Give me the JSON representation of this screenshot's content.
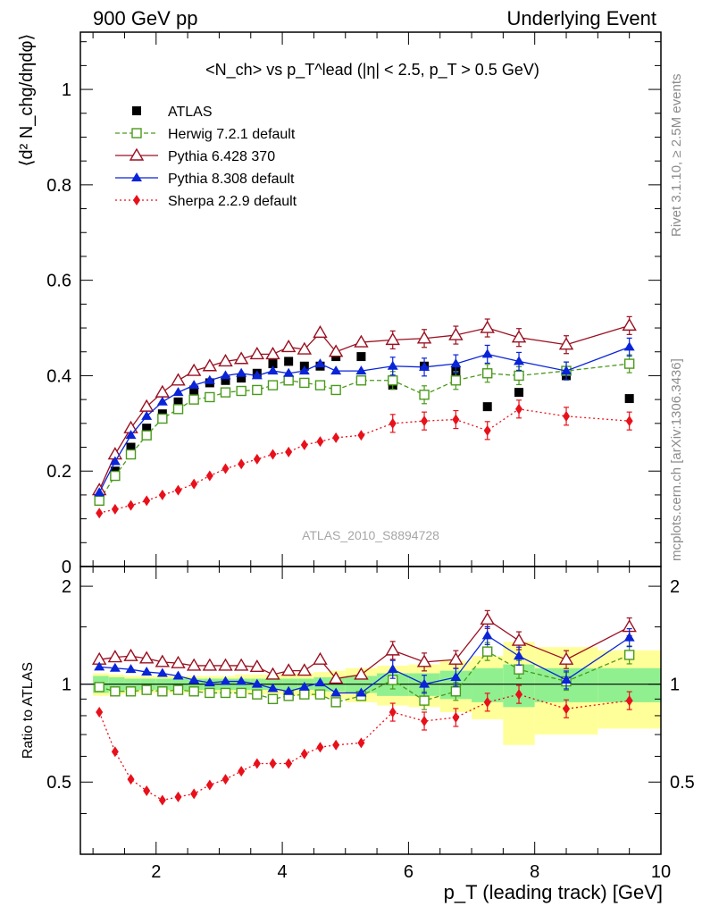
{
  "header": {
    "left": "900 GeV pp",
    "right": "Underlying Event"
  },
  "side_text": {
    "rivet": "Rivet 3.1.10, ≥ 2.5M events",
    "mcplots": "mcplots.cern.ch [arXiv:1306.3436]"
  },
  "colors": {
    "atlas": "#000000",
    "herwig": "#4a9a1a",
    "pythia6": "#9a1020",
    "pythia8": "#0a24d8",
    "sherpa": "#e8101a",
    "band_inner": "#90f090",
    "band_outer": "#ffff99"
  },
  "chart_data": [
    {
      "type": "line",
      "title": "<N_ch> vs p_T^lead (|η| < 2.5, p_T > 0.5 GeV)",
      "ylabel": "⟨d² N_chg/dηdφ⟩",
      "xlim": [
        0.8,
        10.0
      ],
      "ylim": [
        0,
        1.12
      ],
      "y_ticks": [
        0,
        0.2,
        0.4,
        0.6,
        0.8,
        1
      ],
      "y_tick_labels": [
        "0",
        "0.2",
        "0.4",
        "0.6",
        "0.8",
        "1"
      ],
      "annotation": "ATLAS_2010_S8894728",
      "legend_position": "top-left",
      "x": [
        1.1,
        1.35,
        1.6,
        1.85,
        2.1,
        2.35,
        2.6,
        2.85,
        3.1,
        3.35,
        3.6,
        3.85,
        4.1,
        4.35,
        4.6,
        4.85,
        5.25,
        5.75,
        6.25,
        6.75,
        7.25,
        7.75,
        8.5,
        9.5
      ],
      "series": [
        {
          "name": "ATLAS",
          "style": "data",
          "values": [
            0.14,
            0.2,
            0.25,
            0.29,
            0.32,
            0.345,
            0.37,
            0.385,
            0.39,
            0.395,
            0.405,
            0.425,
            0.43,
            0.42,
            0.42,
            0.44,
            0.44,
            0.38,
            0.42,
            0.41,
            0.335,
            0.365,
            0.4,
            0.352
          ]
        },
        {
          "name": "Herwig 7.2.1 default",
          "style": "open-square-dashed",
          "values": [
            0.138,
            0.19,
            0.235,
            0.275,
            0.31,
            0.33,
            0.35,
            0.355,
            0.365,
            0.368,
            0.37,
            0.38,
            0.39,
            0.385,
            0.38,
            0.37,
            0.39,
            0.39,
            0.36,
            0.39,
            0.405,
            0.4,
            0.41,
            0.425
          ]
        },
        {
          "name": "Pythia 6.428 370",
          "style": "open-triangle-solid",
          "values": [
            0.16,
            0.235,
            0.29,
            0.335,
            0.365,
            0.39,
            0.41,
            0.42,
            0.43,
            0.435,
            0.445,
            0.445,
            0.46,
            0.455,
            0.49,
            0.45,
            0.47,
            0.475,
            0.478,
            0.485,
            0.5,
            0.48,
            0.465,
            0.505
          ]
        },
        {
          "name": "Pythia 8.308 default",
          "style": "filled-triangle-solid",
          "values": [
            0.155,
            0.22,
            0.275,
            0.315,
            0.345,
            0.365,
            0.38,
            0.39,
            0.4,
            0.405,
            0.4,
            0.41,
            0.405,
            0.41,
            0.425,
            0.41,
            0.41,
            0.42,
            0.418,
            0.425,
            0.445,
            0.43,
            0.41,
            0.46
          ]
        },
        {
          "name": "Sherpa 2.2.9 default",
          "style": "filled-diamond-dotted",
          "values": [
            0.112,
            0.12,
            0.128,
            0.138,
            0.15,
            0.16,
            0.173,
            0.19,
            0.205,
            0.215,
            0.225,
            0.235,
            0.24,
            0.255,
            0.262,
            0.27,
            0.275,
            0.3,
            0.305,
            0.308,
            0.285,
            0.33,
            0.315,
            0.305
          ]
        }
      ]
    },
    {
      "type": "line",
      "xlabel": "p_T (leading track) [GeV]",
      "ylabel": "Ratio to ATLAS",
      "xlim": [
        0.8,
        10.0
      ],
      "ylim": [
        0.3,
        2.3
      ],
      "x_ticks": [
        2,
        4,
        6,
        8,
        10
      ],
      "x_tick_labels": [
        "2",
        "4",
        "6",
        "8",
        "10"
      ],
      "y_ticks": [
        0.5,
        1,
        2
      ],
      "y_tick_labels": [
        "0.5",
        "1",
        "2"
      ],
      "bin_edges": [
        1.0,
        1.25,
        1.5,
        1.75,
        2.0,
        2.25,
        2.5,
        2.75,
        3.0,
        3.25,
        3.5,
        3.75,
        4.0,
        4.25,
        4.5,
        4.75,
        5.0,
        5.5,
        6.0,
        6.5,
        7.0,
        7.5,
        8.0,
        9.0,
        10.0
      ],
      "band_inner": [
        0.06,
        0.05,
        0.04,
        0.04,
        0.04,
        0.04,
        0.04,
        0.04,
        0.04,
        0.04,
        0.04,
        0.04,
        0.04,
        0.04,
        0.05,
        0.05,
        0.06,
        0.08,
        0.08,
        0.1,
        0.12,
        0.15,
        0.12,
        0.12
      ],
      "band_outer": [
        0.08,
        0.07,
        0.06,
        0.06,
        0.06,
        0.06,
        0.06,
        0.06,
        0.06,
        0.07,
        0.07,
        0.07,
        0.08,
        0.08,
        0.09,
        0.1,
        0.12,
        0.14,
        0.15,
        0.18,
        0.22,
        0.35,
        0.3,
        0.27
      ],
      "x": [
        1.1,
        1.35,
        1.6,
        1.85,
        2.1,
        2.35,
        2.6,
        2.85,
        3.1,
        3.35,
        3.6,
        3.85,
        4.1,
        4.35,
        4.6,
        4.85,
        5.25,
        5.75,
        6.25,
        6.75,
        7.25,
        7.75,
        8.5,
        9.5
      ],
      "series": [
        {
          "name": "Herwig 7.2.1 default",
          "style": "open-square-dashed",
          "values": [
            0.98,
            0.95,
            0.95,
            0.96,
            0.95,
            0.96,
            0.95,
            0.94,
            0.94,
            0.94,
            0.93,
            0.9,
            0.92,
            0.93,
            0.93,
            0.88,
            0.92,
            1.03,
            0.89,
            0.95,
            1.26,
            1.11,
            1.02,
            1.23
          ]
        },
        {
          "name": "Pythia 6.428 370",
          "style": "open-triangle-solid",
          "values": [
            1.19,
            1.21,
            1.22,
            1.2,
            1.17,
            1.16,
            1.14,
            1.14,
            1.14,
            1.14,
            1.13,
            1.07,
            1.1,
            1.1,
            1.19,
            1.04,
            1.07,
            1.27,
            1.17,
            1.19,
            1.58,
            1.36,
            1.19,
            1.5
          ]
        },
        {
          "name": "Pythia 8.308 default",
          "style": "filled-triangle-solid",
          "values": [
            1.13,
            1.12,
            1.11,
            1.09,
            1.08,
            1.06,
            1.03,
            1.01,
            1.02,
            1.02,
            1.0,
            0.97,
            0.95,
            0.98,
            1.01,
            0.94,
            0.94,
            1.11,
            1.0,
            1.05,
            1.41,
            1.22,
            1.03,
            1.39
          ]
        },
        {
          "name": "Sherpa 2.2.9 default",
          "style": "filled-diamond-dotted",
          "values": [
            0.82,
            0.62,
            0.51,
            0.47,
            0.44,
            0.45,
            0.46,
            0.49,
            0.51,
            0.54,
            0.57,
            0.57,
            0.57,
            0.61,
            0.64,
            0.65,
            0.66,
            0.82,
            0.77,
            0.79,
            0.88,
            0.93,
            0.84,
            0.89
          ]
        }
      ]
    }
  ]
}
